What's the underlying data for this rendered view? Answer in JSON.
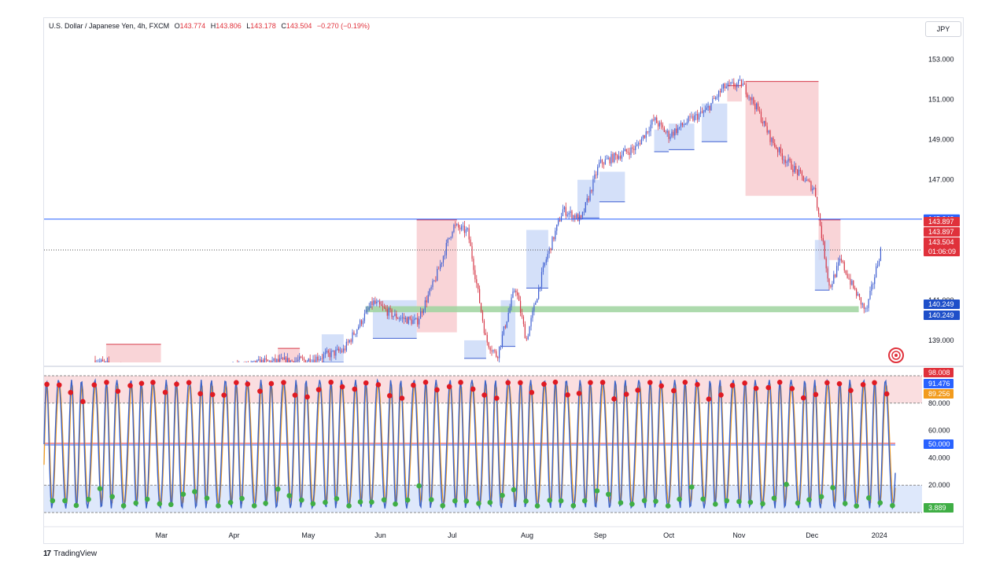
{
  "header": {
    "symbol": "U.S. Dollar / Japanese Yen, 4h, FXCM",
    "open_label": "O",
    "open": "143.774",
    "high_label": "H",
    "high": "143.806",
    "low_label": "L",
    "low": "143.178",
    "close_label": "C",
    "close": "143.504",
    "change": "−0.270 (−0.19%)"
  },
  "currency_button": "JPY",
  "footer": {
    "brand": "TradingView",
    "icon": "tradingview-logo-icon"
  },
  "colors": {
    "bull": "#3f5fd1",
    "bear": "#d63a4a",
    "supply_zone": "#f7c6c9",
    "demand_zone": "#c9d8f7",
    "green_zone": "#9fd49f",
    "osc_line": "#3c63c8",
    "osc_signal": "#f29b1d",
    "dot_red": "#e01a22",
    "dot_green": "#3fae45"
  },
  "chart_data": [
    {
      "type": "candlestick",
      "title": "U.S. Dollar / Japanese Yen, 4h, FXCM",
      "ylim": [
        137.9,
        154.0
      ],
      "y_ticks": [
        "153.000",
        "151.000",
        "149.000",
        "147.000",
        "141.000",
        "139.000"
      ],
      "x_ticks": [
        "Mar",
        "Apr",
        "May",
        "Jun",
        "Jul",
        "Aug",
        "Sep",
        "Oct",
        "Nov",
        "Dec",
        "2024"
      ],
      "x_tick_pos": [
        1.6,
        2.6,
        3.6,
        4.6,
        5.6,
        6.6,
        7.6,
        8.55,
        9.5,
        10.5,
        11.4
      ],
      "price_path_t": [
        0.7,
        1.3,
        1.9,
        2.4,
        3.0,
        3.6,
        4.1,
        4.5,
        4.8,
        5.1,
        5.35,
        5.6,
        5.8,
        6.05,
        6.2,
        6.45,
        6.6,
        6.85,
        7.1,
        7.35,
        7.6,
        7.85,
        8.1,
        8.35,
        8.55,
        8.8,
        9.05,
        9.3,
        9.55,
        9.75,
        9.95,
        10.1,
        10.3,
        10.55,
        10.75,
        10.9,
        11.05,
        11.25,
        11.45
      ],
      "price_path_v": [
        138.0,
        137.2,
        137.0,
        137.4,
        137.9,
        138.0,
        138.5,
        140.9,
        140.2,
        139.9,
        142.0,
        144.7,
        144.4,
        139.0,
        138.2,
        141.7,
        139.0,
        142.8,
        145.5,
        145.0,
        147.8,
        148.2,
        148.6,
        150.0,
        149.2,
        149.9,
        150.4,
        151.6,
        151.8,
        150.6,
        149.0,
        148.2,
        147.4,
        146.5,
        141.6,
        143.0,
        141.8,
        140.4,
        143.5
      ],
      "horizontal_levels": [
        {
          "label": "145.040",
          "value": 145.04,
          "color": "#2962ff"
        },
        {
          "label": "143.504",
          "value": 143.504,
          "color": "#e0313b",
          "countdown": "01:06:09"
        }
      ],
      "price_labels_red": [
        "143.897",
        "143.897"
      ],
      "price_labels_blue": [
        "140.249",
        "140.249"
      ],
      "supply_zones": [
        {
          "t0": 0.85,
          "t1": 1.6,
          "top": 138.8,
          "bottom": 137.9
        },
        {
          "t0": 3.2,
          "t1": 3.5,
          "top": 138.6,
          "bottom": 137.9
        },
        {
          "t0": 5.1,
          "t1": 5.65,
          "top": 145.0,
          "bottom": 139.4
        },
        {
          "t0": 9.35,
          "t1": 9.55,
          "top": 151.7,
          "bottom": 150.9
        },
        {
          "t0": 9.6,
          "t1": 10.6,
          "top": 151.9,
          "bottom": 146.2
        },
        {
          "t0": 10.6,
          "t1": 10.9,
          "top": 145.0,
          "bottom": 143.0
        }
      ],
      "demand_zones": [
        {
          "t0": 3.8,
          "t1": 4.1,
          "top": 139.3,
          "bottom": 137.9
        },
        {
          "t0": 4.5,
          "t1": 5.1,
          "top": 141.0,
          "bottom": 139.1
        },
        {
          "t0": 5.75,
          "t1": 6.05,
          "top": 139.0,
          "bottom": 138.1
        },
        {
          "t0": 6.25,
          "t1": 6.45,
          "top": 141.0,
          "bottom": 138.7
        },
        {
          "t0": 6.6,
          "t1": 6.9,
          "top": 144.5,
          "bottom": 141.6
        },
        {
          "t0": 7.3,
          "t1": 7.6,
          "top": 147.0,
          "bottom": 145.1
        },
        {
          "t0": 7.6,
          "t1": 7.95,
          "top": 147.4,
          "bottom": 145.9
        },
        {
          "t0": 8.35,
          "t1": 8.55,
          "top": 149.5,
          "bottom": 148.4
        },
        {
          "t0": 8.55,
          "t1": 8.9,
          "top": 149.8,
          "bottom": 148.5
        },
        {
          "t0": 9.0,
          "t1": 9.35,
          "top": 150.8,
          "bottom": 148.9
        },
        {
          "t0": 10.55,
          "t1": 10.75,
          "top": 144.0,
          "bottom": 141.5
        }
      ],
      "green_zone": {
        "t0": 4.4,
        "t1": 11.15,
        "top": 140.7,
        "bottom": 140.4
      }
    },
    {
      "type": "line",
      "title": "",
      "ylim": [
        0,
        100
      ],
      "y_ticks": [
        "80.000",
        "60.000",
        "40.000",
        "20.000"
      ],
      "bands": [
        {
          "from": 80,
          "to": 100,
          "color": "#f9d6d8"
        },
        {
          "from": 0,
          "to": 20,
          "color": "#d6e2fa"
        }
      ],
      "mid_lines": [
        {
          "value": 50,
          "color": "#e0313b"
        },
        {
          "value": 50,
          "color": "#2962ff"
        }
      ],
      "value_labels": [
        {
          "label": "98.008",
          "value": 98.008,
          "color": "#e0313b"
        },
        {
          "label": "91.476",
          "value": 91.476,
          "color": "#2962ff"
        },
        {
          "label": "89.256",
          "value": 89.256,
          "color": "#f29b1d"
        },
        {
          "label": "50.000",
          "value": 50.0,
          "color": "#2962ff"
        },
        {
          "label": "3.889",
          "value": 3.889,
          "color": "#3fae45"
        }
      ],
      "cycles": 72,
      "last_value": 91.476
    }
  ]
}
